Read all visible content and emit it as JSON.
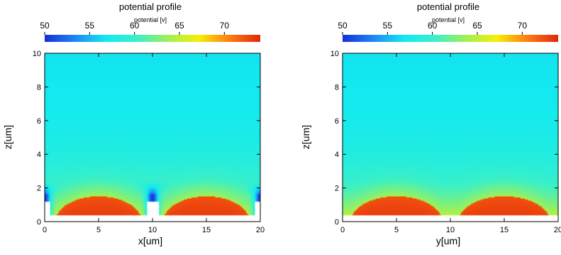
{
  "chart_data": [
    {
      "type": "heatmap",
      "title": "potential profile",
      "colorbar": {
        "label": "potential [v]",
        "range": [
          50,
          74
        ],
        "ticks": [
          50,
          55,
          60,
          65,
          70
        ],
        "colormap": [
          "#1230d8",
          "#1e88f5",
          "#12eaf0",
          "#39f0c9",
          "#9ef058",
          "#f6ef05",
          "#ff7c10",
          "#e3260c"
        ]
      },
      "xlabel": "x[um]",
      "ylabel": "z[um]",
      "xlim": [
        0,
        20
      ],
      "ylim": [
        0,
        10
      ],
      "xticks": [
        0,
        5,
        10,
        15,
        20
      ],
      "yticks": [
        0,
        2,
        4,
        6,
        8,
        10
      ],
      "potential_top": 56.5,
      "potential_peak": 73.5,
      "hot_regions": [
        {
          "x_center": 5,
          "x_start": 1.0,
          "x_end": 9.0
        },
        {
          "x_center": 15,
          "x_start": 11.0,
          "x_end": 19.0
        }
      ],
      "low_potential_gaps_x": [
        0,
        10,
        20
      ]
    },
    {
      "type": "heatmap",
      "title": "potential profile",
      "colorbar": {
        "label": "potential [v]",
        "range": [
          50,
          74
        ],
        "ticks": [
          50,
          55,
          60,
          65,
          70
        ],
        "colormap": [
          "#1230d8",
          "#1e88f5",
          "#12eaf0",
          "#39f0c9",
          "#9ef058",
          "#f6ef05",
          "#ff7c10",
          "#e3260c"
        ]
      },
      "xlabel": "y[um]",
      "ylabel": "z[um]",
      "xlim": [
        0,
        20
      ],
      "ylim": [
        0,
        10
      ],
      "xticks": [
        0,
        5,
        10,
        15,
        20
      ],
      "yticks": [
        0,
        2,
        4,
        6,
        8,
        10
      ],
      "potential_top": 56.5,
      "potential_peak": 73.5,
      "hot_regions": [
        {
          "x_center": 5,
          "x_start": 1.0,
          "x_end": 9.5
        },
        {
          "x_center": 15,
          "x_start": 10.5,
          "x_end": 19.0
        }
      ],
      "low_potential_gaps_x": []
    }
  ]
}
